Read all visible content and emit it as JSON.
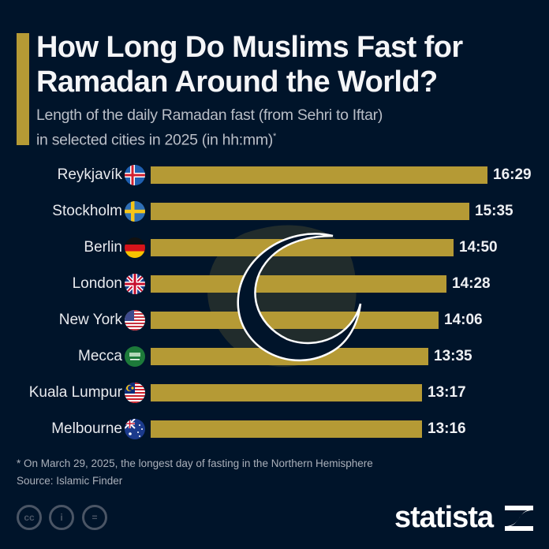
{
  "header": {
    "title": "How Long Do Muslims Fast for Ramadan Around the World?",
    "subtitle_line1": "Length of the daily Ramadan fast (from Sehri to Iftar)",
    "subtitle_line2": "in selected cities in 2025 (in hh:mm)",
    "subtitle_mark": "*"
  },
  "colors": {
    "background": "#00142a",
    "bar": "#b59a35",
    "text": "#ffffff"
  },
  "chart_data": {
    "type": "bar",
    "orientation": "horizontal",
    "title": "How Long Do Muslims Fast for Ramadan Around the World?",
    "subtitle": "Length of the daily Ramadan fast (from Sehri to Iftar) in selected cities in 2025 (in hh:mm)*",
    "categories": [
      "Reykjavík",
      "Stockholm",
      "Berlin",
      "London",
      "New York",
      "Mecca",
      "Kuala Lumpur",
      "Melbourne"
    ],
    "labels": [
      "16:29",
      "15:35",
      "14:50",
      "14:28",
      "14:06",
      "13:35",
      "13:17",
      "13:16"
    ],
    "values_minutes": [
      989,
      935,
      890,
      868,
      846,
      815,
      797,
      796
    ],
    "flags": [
      "iceland-flag",
      "sweden-flag",
      "germany-flag",
      "uk-flag",
      "usa-flag",
      "saudi-arabia-flag",
      "malaysia-flag",
      "australia-flag"
    ],
    "xlabel": "",
    "ylabel": "",
    "grid": false,
    "legend": "none"
  },
  "rows": [
    {
      "city": "Reykjavík",
      "value": "16:29"
    },
    {
      "city": "Stockholm",
      "value": "15:35"
    },
    {
      "city": "Berlin",
      "value": "14:50"
    },
    {
      "city": "London",
      "value": "14:28"
    },
    {
      "city": "New York",
      "value": "14:06"
    },
    {
      "city": "Mecca",
      "value": "13:35"
    },
    {
      "city": "Kuala Lumpur",
      "value": "13:17"
    },
    {
      "city": "Melbourne",
      "value": "13:16"
    }
  ],
  "footer": {
    "note": "* On March 29, 2025, the longest day of fasting in the Northern Hemisphere",
    "source": "Source: Islamic Finder",
    "license_icons": [
      "cc",
      "i",
      "="
    ],
    "brand": "statista"
  }
}
